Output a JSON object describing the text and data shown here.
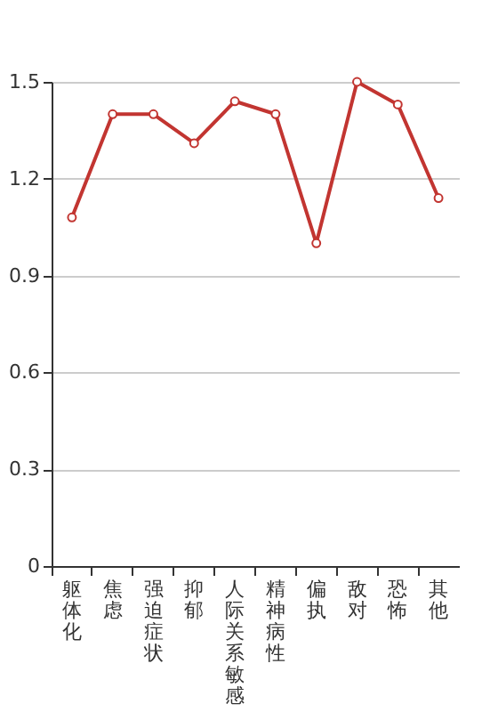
{
  "chart_data": {
    "type": "line",
    "categories": [
      "躯体化",
      "焦虑",
      "强迫症状",
      "抑郁",
      "人际关系敏感",
      "精神病性",
      "偏执",
      "敌对",
      "恐怖",
      "其他"
    ],
    "series": [
      {
        "color": "#c23531",
        "values": [
          1.08,
          1.4,
          1.4,
          1.31,
          1.44,
          1.4,
          1.0,
          1.5,
          1.43,
          1.14
        ]
      }
    ],
    "ylim": [
      0,
      1.5
    ],
    "yticks": [
      0,
      0.3,
      0.6,
      0.9,
      1.2,
      1.5
    ],
    "grid": "y",
    "marker": "circle",
    "line_style": "solid"
  }
}
